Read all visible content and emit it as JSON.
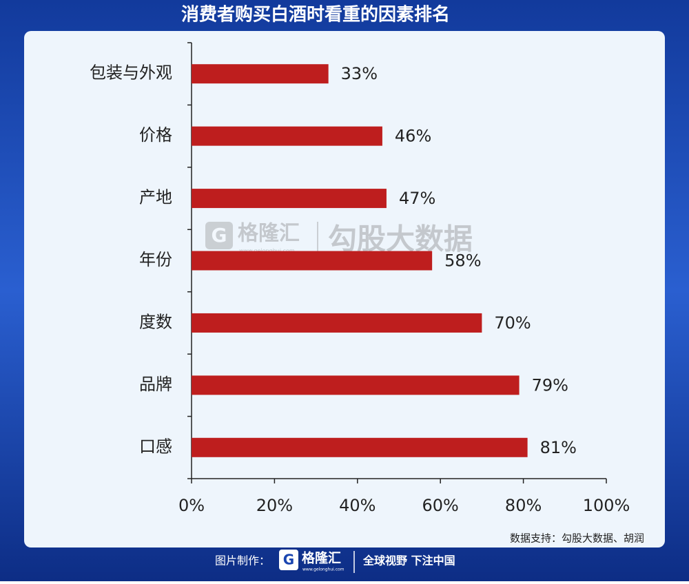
{
  "chart_data": {
    "type": "bar",
    "orientation": "horizontal",
    "title": "消费者购买白酒时看重的因素排名",
    "categories": [
      "包装与外观",
      "价格",
      "产地",
      "年份",
      "度数",
      "品牌",
      "口感"
    ],
    "values": [
      33,
      46,
      47,
      58,
      70,
      79,
      81
    ],
    "value_labels": [
      "33%",
      "46%",
      "47%",
      "58%",
      "70%",
      "79%",
      "81%"
    ],
    "color": "#be1e1e",
    "xlim": [
      0,
      100
    ],
    "xticks": [
      {
        "value": 0,
        "label": "0%"
      },
      {
        "value": 20,
        "label": "20%"
      },
      {
        "value": 40,
        "label": "40%"
      },
      {
        "value": 60,
        "label": "60%"
      },
      {
        "value": 80,
        "label": "80%"
      },
      {
        "value": 100,
        "label": "100%"
      }
    ],
    "grid": false,
    "source": "数据支持：勾股大数据、胡润"
  },
  "watermark": {
    "brand": "格隆汇",
    "site": "www.gelonghui.com",
    "partner": "勾股大数据"
  },
  "footer": {
    "made_by": "图片制作：",
    "brand": "格隆汇",
    "site": "www.gelonghui.com",
    "slogan": "全球视野 下注中国"
  }
}
